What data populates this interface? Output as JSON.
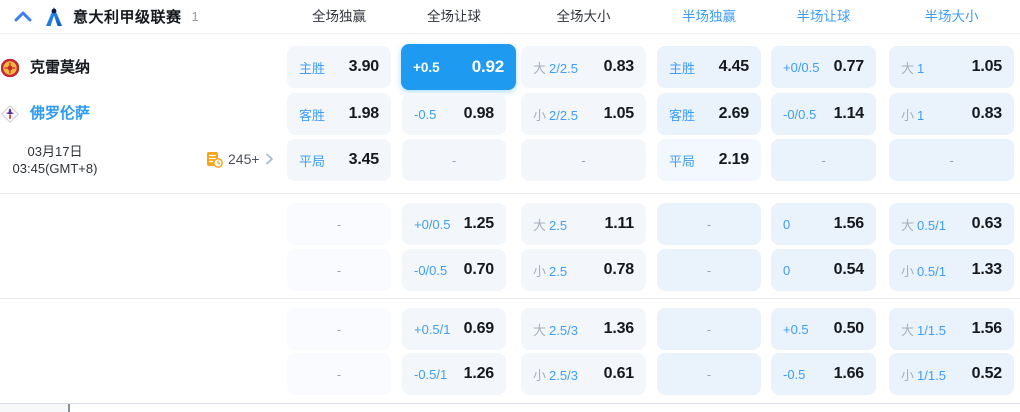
{
  "header": {
    "league": "意大利甲级联赛",
    "count": "1",
    "columns": [
      {
        "label": "全场独赢",
        "type": "ft"
      },
      {
        "label": "全场让球",
        "type": "ft"
      },
      {
        "label": "全场大小",
        "type": "ft"
      },
      {
        "label": "半场独赢",
        "type": "ht"
      },
      {
        "label": "半场让球",
        "type": "ht"
      },
      {
        "label": "半场大小",
        "type": "ht"
      }
    ]
  },
  "fixture": {
    "home_team": "克雷莫纳",
    "away_team": "佛罗伦萨",
    "date": "03月17日",
    "time": "03:45(GMT+8)",
    "markets_count": "245+"
  },
  "colors": {
    "accent_blue": "#2E9BF5",
    "selected_blue": "#1E9BF0",
    "value_dark": "#15191E",
    "icon_orange": "#F7A41D"
  },
  "odds_rows": [
    [
      {
        "label": "主胜",
        "value": "3.90"
      },
      {
        "label": "+0.5",
        "value": "0.92",
        "selected": true
      },
      {
        "prefix": "大",
        "label": "2/2.5",
        "value": "0.83"
      },
      {
        "label": "主胜",
        "value": "4.45"
      },
      {
        "label": "+0/0.5",
        "value": "0.77"
      },
      {
        "prefix": "大",
        "label": "1",
        "value": "1.05"
      }
    ],
    [
      {
        "label": "客胜",
        "value": "1.98"
      },
      {
        "label": "-0.5",
        "value": "0.98"
      },
      {
        "prefix": "小",
        "label": "2/2.5",
        "value": "1.05"
      },
      {
        "label": "客胜",
        "value": "2.69"
      },
      {
        "label": "-0/0.5",
        "value": "1.14"
      },
      {
        "prefix": "小",
        "label": "1",
        "value": "0.83"
      }
    ],
    [
      {
        "label": "平局",
        "value": "3.45"
      },
      {
        "dash": true
      },
      {
        "dash": true
      },
      {
        "label": "平局",
        "value": "2.19",
        "light": true
      },
      {
        "dash": true
      },
      {
        "dash": true
      }
    ],
    [
      {
        "dash": true,
        "muted": true
      },
      {
        "label": "+0/0.5",
        "value": "1.25"
      },
      {
        "prefix": "大",
        "label": "2.5",
        "value": "1.11"
      },
      {
        "dash": true
      },
      {
        "label": "0",
        "value": "1.56"
      },
      {
        "prefix": "大",
        "label": "0.5/1",
        "value": "0.63"
      }
    ],
    [
      {
        "dash": true,
        "muted": true
      },
      {
        "label": "-0/0.5",
        "value": "0.70"
      },
      {
        "prefix": "小",
        "label": "2.5",
        "value": "0.78"
      },
      {
        "dash": true
      },
      {
        "label": "0",
        "value": "0.54"
      },
      {
        "prefix": "小",
        "label": "0.5/1",
        "value": "1.33"
      }
    ],
    [
      {
        "dash": true,
        "muted": true
      },
      {
        "label": "+0.5/1",
        "value": "0.69"
      },
      {
        "prefix": "大",
        "label": "2.5/3",
        "value": "1.36"
      },
      {
        "dash": true
      },
      {
        "label": "+0.5",
        "value": "0.50"
      },
      {
        "prefix": "大",
        "label": "1/1.5",
        "value": "1.56"
      }
    ],
    [
      {
        "dash": true,
        "muted": true
      },
      {
        "label": "-0.5/1",
        "value": "1.26"
      },
      {
        "prefix": "小",
        "label": "2.5/3",
        "value": "0.61"
      },
      {
        "dash": true
      },
      {
        "label": "-0.5",
        "value": "1.66"
      },
      {
        "prefix": "小",
        "label": "1/1.5",
        "value": "0.52"
      }
    ]
  ]
}
